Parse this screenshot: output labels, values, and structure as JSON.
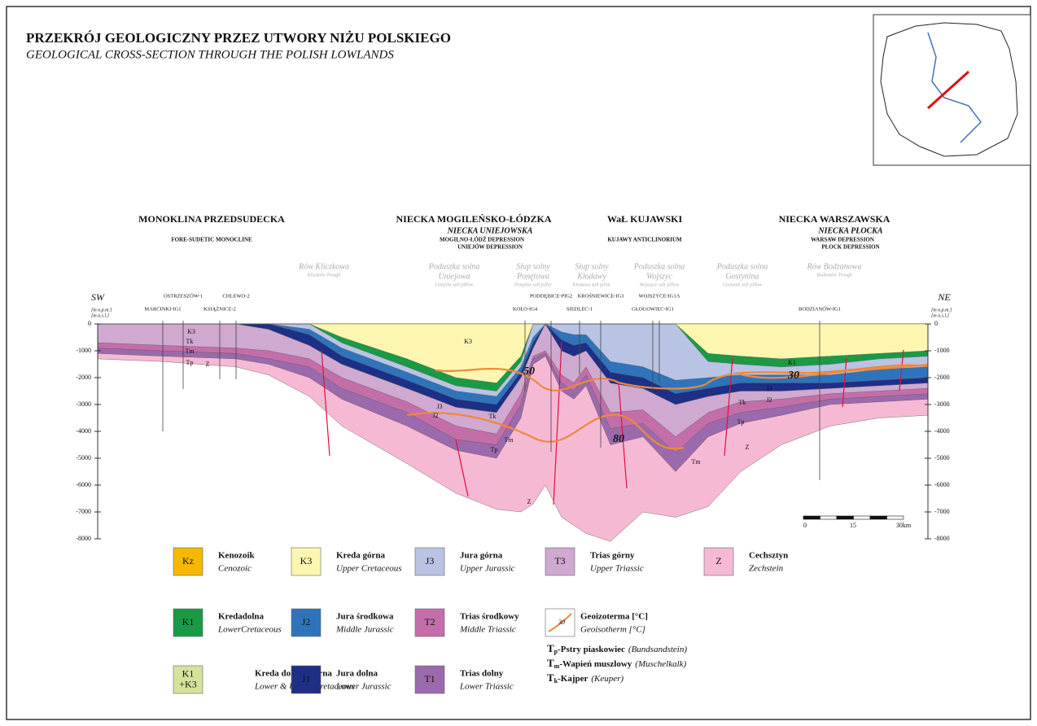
{
  "header": {
    "title": "PRZEKRÓJ GEOLOGICZNY PRZEZ UTWORY NIŻU POLSKIEGO",
    "subtitle": "GEOLOGICAL CROSS-SECTION THROUGH THE POLISH LOWLANDS"
  },
  "regions": [
    {
      "name": "MONOKLINA PRZEDSUDECKA",
      "english": "FORE-SUDETIC MONOCLINE"
    },
    {
      "name": "NIECKA MOGILEŃSKO-ŁÓDZKA",
      "sub": "NIECKA UNIEJOWSKA",
      "english": "MOGILNO-ŁÓDŹ DEPRESSION",
      "english_sub": "UNIEJÓW DEPRESSION"
    },
    {
      "name": "WaŁ KUJAWSKI",
      "english": "KUJAWY ANTICLINORIUM"
    },
    {
      "name": "NIECKA WARSZAWSKA",
      "sub": "NIECKA PŁOCKA",
      "english": "WARSAW DEPRESSION",
      "english_sub": "PŁOCK DEPRESSION"
    }
  ],
  "structures": [
    {
      "lines": [
        "Rów Kliczkowa"
      ],
      "english": "Kliczków Trough"
    },
    {
      "lines": [
        "Poduszka solna",
        "Uniejowa"
      ],
      "english": "Uniejów salt pillow"
    },
    {
      "lines": [
        "Słup solny",
        "Ponętowa"
      ],
      "english": "Ponętów salt pillar"
    },
    {
      "lines": [
        "Słup solny",
        "Kłodawy"
      ],
      "english": "Kłodawa salt pillar"
    },
    {
      "lines": [
        "Poduszka solna",
        "Wojszyc"
      ],
      "english": "Wojszyce salt pillow"
    },
    {
      "lines": [
        "Poduszka solna",
        "Gostynina"
      ],
      "english": "Gostynin salt pillow"
    },
    {
      "lines": [
        "Rów Bodzanowa"
      ],
      "english": "Bodzanów Trough"
    }
  ],
  "wells": [
    "MARCINKI-IG1",
    "OSTRZESZÓW-1",
    "KSIĄŻNICE-2",
    "CHLEWO-2",
    "KOŁO-IG4",
    "PODDĘBICE-PIG2",
    "SIEDLEC-1",
    "KROŚNIEWICE-IG3",
    "GŁOGOWIEC-IG1",
    "WOJSZYCE-IG1A",
    "BODZIANÓW-IG1"
  ],
  "section": {
    "sw": "SW",
    "ne": "NE",
    "depth_unit": [
      "[m n.p.m.]",
      "[m a.s.l.]"
    ],
    "depth_ticks": [
      0,
      -1000,
      -2000,
      -3000,
      -4000,
      -5000,
      -6000,
      -7000,
      -8000
    ],
    "scale_labels": [
      "0",
      "15",
      "30km"
    ],
    "strata_labels": [
      "K3",
      "Tk",
      "Tm",
      "Tp",
      "Z",
      "J3",
      "J2",
      "Tk",
      "Tm",
      "Tp",
      "Z",
      "K3",
      "K1",
      "J3",
      "J2",
      "Tk",
      "Tp",
      "Z",
      "Tm"
    ],
    "isotherms": [
      50,
      30,
      80
    ]
  },
  "legend": [
    {
      "code": [
        "Kz"
      ],
      "name": "Kenozoik",
      "english": "Cenozoic",
      "color": "#f6b800"
    },
    {
      "code": [
        "K3"
      ],
      "name": "Kreda górna",
      "english": "Upper Cretaceous",
      "color": "#fdf6b0"
    },
    {
      "code": [
        "J3"
      ],
      "name": "Jura górna",
      "english": "Upper Jurassic",
      "color": "#b9c3e3"
    },
    {
      "code": [
        "T3"
      ],
      "name": "Trias górny",
      "english": "Upper Triassic",
      "color": "#cfa9d0"
    },
    {
      "code": [
        "Z"
      ],
      "name": "Cechsztyn",
      "english": "Zechstein",
      "color": "#f6b9d4"
    },
    {
      "code": [
        "K1"
      ],
      "name": "Kredadolna",
      "english": "LowerCretaceous",
      "color": "#1a9a46"
    },
    {
      "code": [
        "J2"
      ],
      "name": "Jura środkowa",
      "english": "Middle Jurassic",
      "color": "#2f74bb"
    },
    {
      "code": [
        "T2"
      ],
      "name": "Trias środkowy",
      "english": "Middle Triassic",
      "color": "#c46ea9"
    },
    {
      "code": [
        "K1",
        "+K3"
      ],
      "name": "Kreda dolna i górna",
      "english": "Lower & Upper Cretaceous",
      "color": "#d5e39a"
    },
    {
      "code": [
        "J1"
      ],
      "name": "Jura dolna",
      "english": "Lower Jurassic",
      "color": "#1e2f86"
    },
    {
      "code": [
        "T1"
      ],
      "name": "Trias dolny",
      "english": "Lower Triassic",
      "color": "#9a6aac"
    }
  ],
  "isotherm_legend": {
    "symbol": "30",
    "name": "Geoizoterma [°C]",
    "english": "Geoisotherm [°C]"
  },
  "notes": [
    {
      "symbol": "T",
      "sub": "p",
      "text": "-Pstry piaskowiec",
      "english": "(Bundsandstein)"
    },
    {
      "symbol": "T",
      "sub": "m",
      "text": "-Wapień muszlowy",
      "english": "(Muschelkalk)"
    },
    {
      "symbol": "T",
      "sub": "k",
      "text": "-Kajper",
      "english": "(Keuper)"
    }
  ]
}
